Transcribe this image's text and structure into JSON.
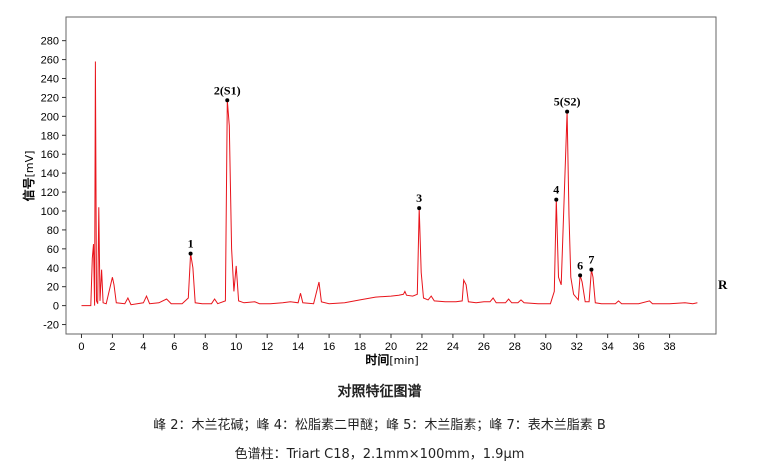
{
  "chart_data": {
    "type": "line",
    "title": "对照特征图谱",
    "ylabel_main": "信号",
    "ylabel_unit": "[mV]",
    "xlabel_main": "时间",
    "xlabel_unit": "[min]",
    "trace_label": "R",
    "xlim": [
      -1,
      41
    ],
    "ylim": [
      -30,
      305
    ],
    "x_ticks": [
      0,
      2,
      4,
      6,
      8,
      10,
      12,
      14,
      16,
      18,
      20,
      22,
      24,
      26,
      28,
      30,
      32,
      34,
      36,
      38
    ],
    "y_ticks": [
      -20,
      0,
      20,
      40,
      60,
      80,
      100,
      120,
      140,
      160,
      180,
      200,
      220,
      240,
      260,
      280
    ],
    "grid": false,
    "series": [
      {
        "color": "#e8141b",
        "points": [
          [
            0,
            0
          ],
          [
            0.6,
            0
          ],
          [
            0.7,
            50
          ],
          [
            0.78,
            65
          ],
          [
            0.85,
            0
          ],
          [
            0.9,
            258
          ],
          [
            0.97,
            5
          ],
          [
            1.05,
            2
          ],
          [
            1.12,
            104
          ],
          [
            1.2,
            5
          ],
          [
            1.3,
            38
          ],
          [
            1.4,
            3
          ],
          [
            1.6,
            2
          ],
          [
            2.0,
            30
          ],
          [
            2.1,
            22
          ],
          [
            2.25,
            3
          ],
          [
            2.8,
            2
          ],
          [
            3.0,
            8
          ],
          [
            3.2,
            1
          ],
          [
            4.0,
            3
          ],
          [
            4.2,
            10
          ],
          [
            4.4,
            2
          ],
          [
            5.0,
            3
          ],
          [
            5.5,
            7
          ],
          [
            5.8,
            2
          ],
          [
            6.5,
            2
          ],
          [
            6.9,
            8
          ],
          [
            7.05,
            55
          ],
          [
            7.2,
            40
          ],
          [
            7.35,
            3
          ],
          [
            7.8,
            2
          ],
          [
            8.4,
            2
          ],
          [
            8.6,
            7
          ],
          [
            8.8,
            2
          ],
          [
            9.3,
            5
          ],
          [
            9.42,
            217
          ],
          [
            9.55,
            190
          ],
          [
            9.7,
            60
          ],
          [
            9.85,
            15
          ],
          [
            10.0,
            42
          ],
          [
            10.15,
            5
          ],
          [
            10.5,
            3
          ],
          [
            11.2,
            4
          ],
          [
            11.5,
            2
          ],
          [
            12.2,
            2
          ],
          [
            13.0,
            3
          ],
          [
            13.5,
            4
          ],
          [
            14.0,
            3
          ],
          [
            14.15,
            13
          ],
          [
            14.3,
            3
          ],
          [
            15.0,
            2
          ],
          [
            15.35,
            25
          ],
          [
            15.5,
            4
          ],
          [
            16.0,
            2
          ],
          [
            17.0,
            3
          ],
          [
            18.0,
            6
          ],
          [
            19.0,
            9
          ],
          [
            20.0,
            10
          ],
          [
            20.5,
            11
          ],
          [
            20.8,
            12
          ],
          [
            20.9,
            15
          ],
          [
            21.0,
            11
          ],
          [
            21.4,
            10
          ],
          [
            21.7,
            12
          ],
          [
            21.82,
            103
          ],
          [
            21.95,
            35
          ],
          [
            22.1,
            8
          ],
          [
            22.4,
            6
          ],
          [
            22.6,
            10
          ],
          [
            22.8,
            5
          ],
          [
            23.5,
            4
          ],
          [
            24.2,
            4
          ],
          [
            24.6,
            5
          ],
          [
            24.7,
            27
          ],
          [
            24.85,
            22
          ],
          [
            25.0,
            4
          ],
          [
            25.5,
            3
          ],
          [
            26.0,
            4
          ],
          [
            26.4,
            4
          ],
          [
            26.6,
            8
          ],
          [
            26.8,
            3
          ],
          [
            27.4,
            3
          ],
          [
            27.6,
            7
          ],
          [
            27.8,
            3
          ],
          [
            28.2,
            3
          ],
          [
            28.4,
            6
          ],
          [
            28.6,
            3
          ],
          [
            29.5,
            2
          ],
          [
            30.3,
            2
          ],
          [
            30.55,
            15
          ],
          [
            30.68,
            112
          ],
          [
            30.82,
            30
          ],
          [
            31.0,
            22
          ],
          [
            31.38,
            205
          ],
          [
            31.5,
            95
          ],
          [
            31.62,
            30
          ],
          [
            31.8,
            12
          ],
          [
            32.1,
            6
          ],
          [
            32.22,
            32
          ],
          [
            32.35,
            25
          ],
          [
            32.55,
            4
          ],
          [
            32.8,
            4
          ],
          [
            32.95,
            38
          ],
          [
            33.05,
            30
          ],
          [
            33.2,
            3
          ],
          [
            33.6,
            2
          ],
          [
            34.5,
            2
          ],
          [
            34.7,
            5
          ],
          [
            34.9,
            2
          ],
          [
            36.0,
            2
          ],
          [
            36.7,
            5
          ],
          [
            36.9,
            2
          ],
          [
            38.0,
            2
          ],
          [
            39.0,
            3
          ],
          [
            39.5,
            2
          ],
          [
            39.8,
            3
          ]
        ]
      }
    ],
    "peak_labels": [
      {
        "label": "1",
        "x": 7.05,
        "y": 55
      },
      {
        "label": "2(S1)",
        "x": 9.42,
        "y": 217
      },
      {
        "label": "3",
        "x": 21.82,
        "y": 103
      },
      {
        "label": "4",
        "x": 30.68,
        "y": 112
      },
      {
        "label": "5(S2)",
        "x": 31.38,
        "y": 205
      },
      {
        "label": "6",
        "x": 32.22,
        "y": 32
      },
      {
        "label": "7",
        "x": 32.95,
        "y": 38
      }
    ]
  },
  "caption": {
    "title": "对照特征图谱",
    "peaks": "峰 2：木兰花碱；峰 4：松脂素二甲醚；峰 5：木兰脂素；峰 7：表木兰脂素 B",
    "column": "色谱柱：Triart C18，2.1mm×100mm，1.9μm"
  }
}
